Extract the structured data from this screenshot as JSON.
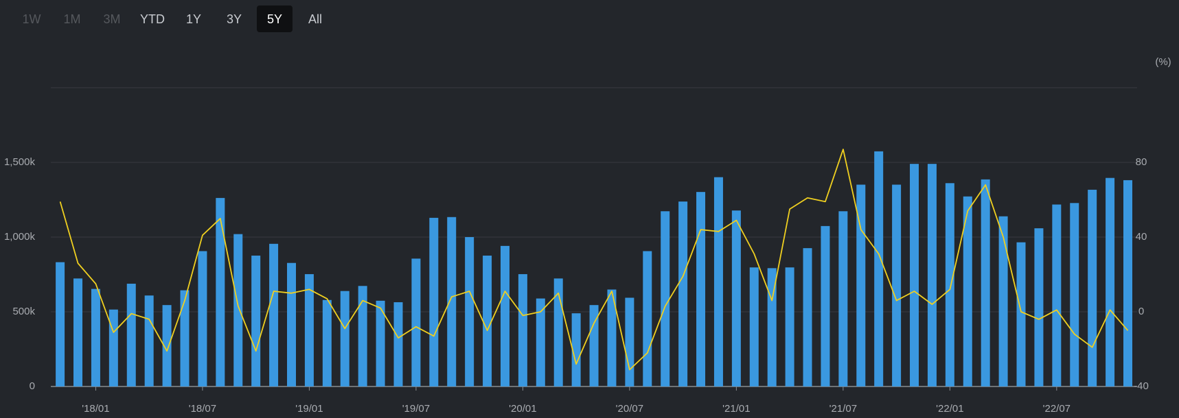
{
  "range_buttons": [
    {
      "label": "1W",
      "state": "disabled"
    },
    {
      "label": "1M",
      "state": "disabled"
    },
    {
      "label": "3M",
      "state": "disabled"
    },
    {
      "label": "YTD",
      "state": "enabled"
    },
    {
      "label": "1Y",
      "state": "enabled"
    },
    {
      "label": "3Y",
      "state": "enabled"
    },
    {
      "label": "5Y",
      "state": "active"
    },
    {
      "label": "All",
      "state": "enabled"
    }
  ],
  "chart_data": {
    "type": "bar-line",
    "y2_label": "(%)",
    "categories": [
      null,
      null,
      "'18/01",
      null,
      null,
      null,
      null,
      null,
      "'18/07",
      null,
      null,
      null,
      null,
      null,
      "'19/01",
      null,
      null,
      null,
      null,
      null,
      "'19/07",
      null,
      null,
      null,
      null,
      null,
      "'20/01",
      null,
      null,
      null,
      null,
      null,
      "'20/07",
      null,
      null,
      null,
      null,
      null,
      "'21/01",
      null,
      null,
      null,
      null,
      null,
      "'21/07",
      null,
      null,
      null,
      null,
      null,
      "'22/01",
      null,
      null,
      null,
      null,
      null,
      "'22/07",
      null,
      null,
      null,
      null
    ],
    "series": [
      {
        "type": "bar",
        "color": "#3a98e0",
        "values": [
          832000,
          723000,
          653000,
          515000,
          688000,
          609000,
          545000,
          644000,
          906000,
          1262000,
          1020000,
          876000,
          955000,
          827000,
          752000,
          579000,
          639000,
          673000,
          574000,
          564000,
          856000,
          1129000,
          1134000,
          1000000,
          876000,
          941000,
          752000,
          589000,
          723000,
          490000,
          545000,
          649000,
          594000,
          906000,
          1173000,
          1238000,
          1302000,
          1401000,
          1178000,
          797000,
          792000,
          797000,
          926000,
          1074000,
          1173000,
          1351000,
          1574000,
          1351000,
          1490000,
          1490000,
          1361000,
          1272000,
          1386000,
          1139000,
          965000,
          1059000,
          1218000,
          1228000,
          1317000,
          1396000,
          1381000
        ]
      },
      {
        "type": "line",
        "axis": "y2",
        "color": "#f0d020",
        "values": [
          59,
          26,
          15,
          -11,
          -1,
          -4,
          -21,
          6,
          41,
          50,
          3,
          -21,
          11,
          10,
          12,
          7,
          -9,
          6,
          2,
          -14,
          -8,
          -13,
          8,
          11,
          -10,
          11,
          -2,
          0,
          10,
          -28,
          -6,
          11,
          -31,
          -22,
          3,
          19,
          44,
          43,
          49,
          31,
          6,
          55,
          61,
          59,
          87,
          44,
          31,
          6,
          11,
          4,
          12,
          54,
          68,
          40,
          0,
          -4,
          1,
          -12,
          -19,
          1,
          -10
        ]
      }
    ],
    "ylim": [
      0,
      2000000
    ],
    "yticks": [
      0,
      {
        "value": 500000,
        "label": "500k"
      },
      {
        "value": 1000000,
        "label": "1,000k"
      },
      {
        "value": 1500000,
        "label": "1,500k"
      }
    ],
    "y2lim": [
      -40,
      120
    ],
    "y2ticks": [
      -40,
      0,
      40,
      80
    ],
    "grid": true
  }
}
